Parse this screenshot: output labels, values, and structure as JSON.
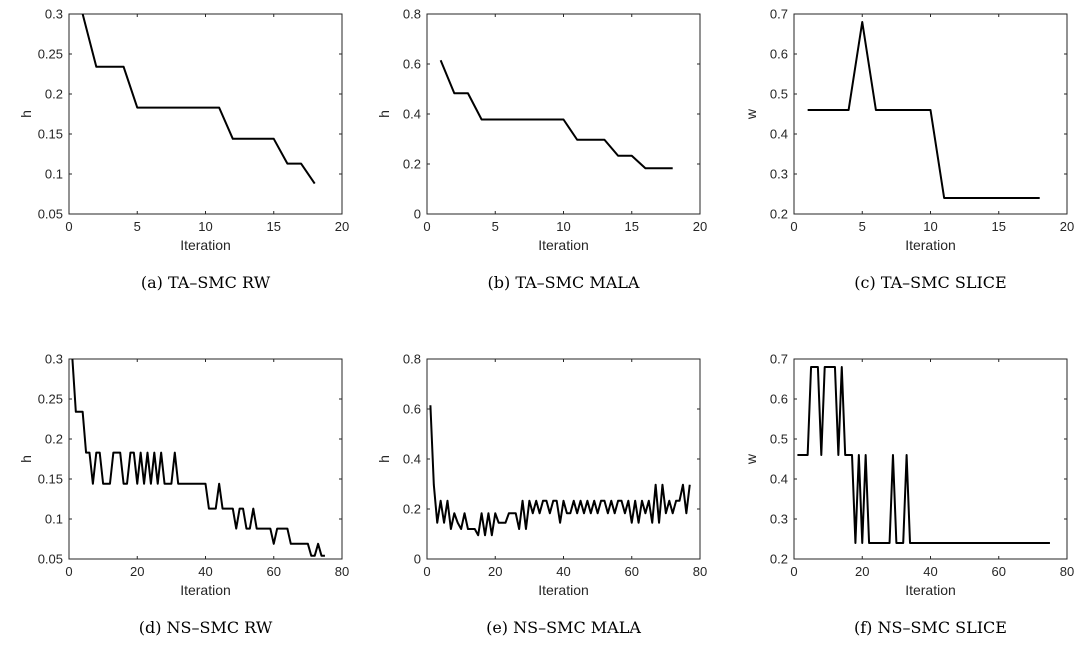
{
  "chart_data": [
    {
      "type": "line",
      "caption": "(a) TA–SMC RW",
      "xlabel": "Iteration",
      "ylabel": "h",
      "xlim": [
        0,
        20
      ],
      "ylim": [
        0.05,
        0.3
      ],
      "xticks": [
        0,
        5,
        10,
        15,
        20
      ],
      "yticks": [
        0.05,
        0.1,
        0.15,
        0.2,
        0.25,
        0.3
      ],
      "ytick_labels": [
        "0.05",
        "0.1",
        "0.15",
        "0.2",
        "0.25",
        "0.3"
      ],
      "x": [
        1,
        2,
        3,
        4,
        5,
        6,
        7,
        8,
        9,
        10,
        11,
        12,
        13,
        14,
        15,
        16,
        17,
        18
      ],
      "y": [
        0.3,
        0.234,
        0.234,
        0.234,
        0.183,
        0.183,
        0.183,
        0.183,
        0.183,
        0.183,
        0.183,
        0.144,
        0.144,
        0.144,
        0.144,
        0.113,
        0.113,
        0.088
      ]
    },
    {
      "type": "line",
      "caption": "(b) TA–SMC MALA",
      "xlabel": "Iteration",
      "ylabel": "h",
      "xlim": [
        0,
        20
      ],
      "ylim": [
        0,
        0.8
      ],
      "xticks": [
        0,
        5,
        10,
        15,
        20
      ],
      "yticks": [
        0,
        0.2,
        0.4,
        0.6,
        0.8
      ],
      "ytick_labels": [
        "0",
        "0.2",
        "0.4",
        "0.6",
        "0.8"
      ],
      "x": [
        1,
        2,
        3,
        4,
        5,
        6,
        7,
        8,
        9,
        10,
        11,
        12,
        13,
        14,
        15,
        16,
        17,
        18
      ],
      "y": [
        0.615,
        0.483,
        0.483,
        0.378,
        0.378,
        0.378,
        0.378,
        0.378,
        0.378,
        0.378,
        0.297,
        0.297,
        0.297,
        0.233,
        0.233,
        0.183,
        0.183,
        0.183
      ]
    },
    {
      "type": "line",
      "caption": "(c) TA–SMC SLICE",
      "xlabel": "Iteration",
      "ylabel": "w",
      "xlim": [
        0,
        20
      ],
      "ylim": [
        0.2,
        0.7
      ],
      "xticks": [
        0,
        5,
        10,
        15,
        20
      ],
      "yticks": [
        0.2,
        0.3,
        0.4,
        0.5,
        0.6,
        0.7
      ],
      "ytick_labels": [
        "0.2",
        "0.3",
        "0.4",
        "0.5",
        "0.6",
        "0.7"
      ],
      "x": [
        1,
        2,
        3,
        4,
        5,
        6,
        7,
        8,
        9,
        10,
        11,
        12,
        13,
        14,
        15,
        16,
        17,
        18
      ],
      "y": [
        0.46,
        0.46,
        0.46,
        0.46,
        0.68,
        0.46,
        0.46,
        0.46,
        0.46,
        0.46,
        0.24,
        0.24,
        0.24,
        0.24,
        0.24,
        0.24,
        0.24,
        0.24
      ]
    },
    {
      "type": "line",
      "caption": "(d) NS–SMC RW",
      "xlabel": "Iteration",
      "ylabel": "h",
      "xlim": [
        0,
        80
      ],
      "ylim": [
        0.05,
        0.3
      ],
      "xticks": [
        0,
        20,
        40,
        60,
        80
      ],
      "yticks": [
        0.05,
        0.1,
        0.15,
        0.2,
        0.25,
        0.3
      ],
      "ytick_labels": [
        "0.05",
        "0.1",
        "0.15",
        "0.2",
        "0.25",
        "0.3"
      ],
      "x": [
        1,
        2,
        3,
        4,
        5,
        6,
        7,
        8,
        9,
        10,
        11,
        12,
        13,
        14,
        15,
        16,
        17,
        18,
        19,
        20,
        21,
        22,
        23,
        24,
        25,
        26,
        27,
        28,
        29,
        30,
        31,
        32,
        33,
        34,
        35,
        36,
        37,
        38,
        39,
        40,
        41,
        42,
        43,
        44,
        45,
        46,
        47,
        48,
        49,
        50,
        51,
        52,
        53,
        54,
        55,
        56,
        57,
        58,
        59,
        60,
        61,
        62,
        63,
        64,
        65,
        66,
        67,
        68,
        69,
        70,
        71,
        72,
        73,
        74,
        75
      ],
      "y": [
        0.3,
        0.234,
        0.234,
        0.234,
        0.183,
        0.183,
        0.144,
        0.183,
        0.183,
        0.144,
        0.144,
        0.144,
        0.183,
        0.183,
        0.183,
        0.144,
        0.144,
        0.183,
        0.183,
        0.144,
        0.183,
        0.144,
        0.183,
        0.144,
        0.183,
        0.144,
        0.183,
        0.144,
        0.144,
        0.144,
        0.183,
        0.144,
        0.144,
        0.144,
        0.144,
        0.144,
        0.144,
        0.144,
        0.144,
        0.144,
        0.113,
        0.113,
        0.113,
        0.144,
        0.113,
        0.113,
        0.113,
        0.113,
        0.088,
        0.113,
        0.113,
        0.088,
        0.088,
        0.113,
        0.088,
        0.088,
        0.088,
        0.088,
        0.088,
        0.069,
        0.088,
        0.088,
        0.088,
        0.088,
        0.069,
        0.069,
        0.069,
        0.069,
        0.069,
        0.069,
        0.054,
        0.054,
        0.069,
        0.054,
        0.054
      ]
    },
    {
      "type": "line",
      "caption": "(e) NS–SMC MALA",
      "xlabel": "Iteration",
      "ylabel": "h",
      "xlim": [
        0,
        80
      ],
      "ylim": [
        0,
        0.8
      ],
      "xticks": [
        0,
        20,
        40,
        60,
        80
      ],
      "yticks": [
        0,
        0.2,
        0.4,
        0.6,
        0.8
      ],
      "ytick_labels": [
        "0",
        "0.2",
        "0.4",
        "0.6",
        "0.8"
      ],
      "x": [
        1,
        2,
        3,
        4,
        5,
        6,
        7,
        8,
        9,
        10,
        11,
        12,
        13,
        14,
        15,
        16,
        17,
        18,
        19,
        20,
        21,
        22,
        23,
        24,
        25,
        26,
        27,
        28,
        29,
        30,
        31,
        32,
        33,
        34,
        35,
        36,
        37,
        38,
        39,
        40,
        41,
        42,
        43,
        44,
        45,
        46,
        47,
        48,
        49,
        50,
        51,
        52,
        53,
        54,
        55,
        56,
        57,
        58,
        59,
        60,
        61,
        62,
        63,
        64,
        65,
        66,
        67,
        68,
        69,
        70,
        71,
        72,
        73,
        74,
        75,
        76,
        77
      ],
      "y": [
        0.615,
        0.297,
        0.145,
        0.233,
        0.145,
        0.233,
        0.12,
        0.183,
        0.145,
        0.12,
        0.183,
        0.12,
        0.12,
        0.12,
        0.095,
        0.183,
        0.095,
        0.183,
        0.095,
        0.183,
        0.145,
        0.145,
        0.145,
        0.183,
        0.183,
        0.183,
        0.12,
        0.233,
        0.12,
        0.233,
        0.183,
        0.233,
        0.183,
        0.233,
        0.233,
        0.183,
        0.233,
        0.233,
        0.145,
        0.233,
        0.183,
        0.183,
        0.233,
        0.183,
        0.233,
        0.183,
        0.233,
        0.183,
        0.233,
        0.183,
        0.233,
        0.233,
        0.183,
        0.233,
        0.183,
        0.233,
        0.233,
        0.183,
        0.233,
        0.145,
        0.233,
        0.145,
        0.233,
        0.183,
        0.233,
        0.145,
        0.297,
        0.145,
        0.297,
        0.183,
        0.233,
        0.183,
        0.233,
        0.233,
        0.297,
        0.183,
        0.297
      ]
    },
    {
      "type": "line",
      "caption": "(f) NS–SMC SLICE",
      "xlabel": "Iteration",
      "ylabel": "w",
      "xlim": [
        0,
        80
      ],
      "ylim": [
        0.2,
        0.7
      ],
      "xticks": [
        0,
        20,
        40,
        60,
        80
      ],
      "yticks": [
        0.2,
        0.3,
        0.4,
        0.5,
        0.6,
        0.7
      ],
      "ytick_labels": [
        "0.2",
        "0.3",
        "0.4",
        "0.5",
        "0.6",
        "0.7"
      ],
      "x": [
        1,
        2,
        3,
        4,
        5,
        6,
        7,
        8,
        9,
        10,
        11,
        12,
        13,
        14,
        15,
        16,
        17,
        18,
        19,
        20,
        21,
        22,
        23,
        24,
        25,
        26,
        27,
        28,
        29,
        30,
        31,
        32,
        33,
        34,
        35,
        36,
        37,
        38,
        39,
        40,
        41,
        42,
        43,
        44,
        45,
        46,
        47,
        48,
        49,
        50,
        51,
        52,
        53,
        54,
        55,
        56,
        57,
        58,
        59,
        60,
        61,
        62,
        63,
        64,
        65,
        66,
        67,
        68,
        69,
        70,
        71,
        72,
        73,
        74,
        75
      ],
      "y": [
        0.46,
        0.46,
        0.46,
        0.46,
        0.68,
        0.68,
        0.68,
        0.46,
        0.68,
        0.68,
        0.68,
        0.68,
        0.46,
        0.68,
        0.46,
        0.46,
        0.46,
        0.24,
        0.46,
        0.24,
        0.46,
        0.24,
        0.24,
        0.24,
        0.24,
        0.24,
        0.24,
        0.24,
        0.46,
        0.24,
        0.24,
        0.24,
        0.46,
        0.24,
        0.24,
        0.24,
        0.24,
        0.24,
        0.24,
        0.24,
        0.24,
        0.24,
        0.24,
        0.24,
        0.24,
        0.24,
        0.24,
        0.24,
        0.24,
        0.24,
        0.24,
        0.24,
        0.24,
        0.24,
        0.24,
        0.24,
        0.24,
        0.24,
        0.24,
        0.24,
        0.24,
        0.24,
        0.24,
        0.24,
        0.24,
        0.24,
        0.24,
        0.24,
        0.24,
        0.24,
        0.24,
        0.24,
        0.24,
        0.24,
        0.24
      ]
    }
  ]
}
